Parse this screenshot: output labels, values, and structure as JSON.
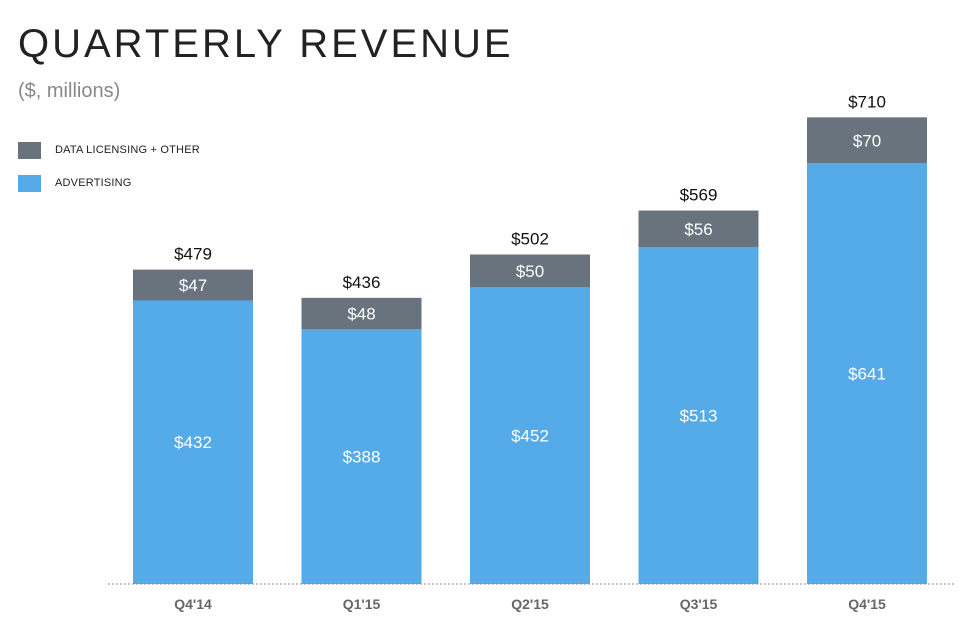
{
  "chart_data": {
    "type": "bar",
    "stacked": true,
    "title": "QUARTERLY REVENUE",
    "subtitle": "($, millions)",
    "categories": [
      "Q4'14",
      "Q1'15",
      "Q2'15",
      "Q3'15",
      "Q4'15"
    ],
    "series": [
      {
        "name": "ADVERTISING",
        "color": "#55aae8",
        "values": [
          432,
          388,
          452,
          513,
          641
        ],
        "labels": [
          "$432",
          "$388",
          "$452",
          "$513",
          "$641"
        ]
      },
      {
        "name": "DATA LICENSING + OTHER",
        "color": "#68737d",
        "values": [
          47,
          48,
          50,
          56,
          70
        ],
        "labels": [
          "$47",
          "$48",
          "$50",
          "$56",
          "$70"
        ]
      }
    ],
    "totals": [
      479,
      436,
      502,
      569,
      710
    ],
    "total_labels": [
      "$479",
      "$436",
      "$502",
      "$569",
      "$710"
    ],
    "ylim": [
      0,
      800
    ],
    "grid": false,
    "legend_position": "top-left",
    "xlabel": "",
    "ylabel": ""
  }
}
